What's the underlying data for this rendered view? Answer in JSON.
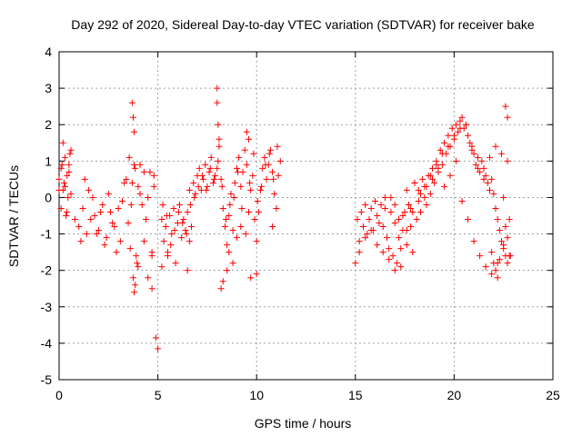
{
  "chart_data": {
    "type": "scatter",
    "title": "Day 292 of 2020, Sidereal Day-to-day VTEC variation (SDTVAR) for receiver bake",
    "xlabel": "GPS time / hours",
    "ylabel": "SDTVAR / TECUs",
    "xlim": [
      0,
      25
    ],
    "ylim": [
      -5,
      4
    ],
    "xticks": [
      "0",
      "5",
      "10",
      "15",
      "20",
      "25"
    ],
    "yticks": [
      "4",
      "3",
      "2",
      "1",
      "0",
      "-1",
      "-2",
      "-3",
      "-4",
      "-5"
    ],
    "grid": true,
    "marker": "plus",
    "color": "#ff0000",
    "series": [
      {
        "name": "SDTVAR",
        "x": [
          0.0,
          0.1,
          0.2,
          0.3,
          0.4,
          0.5,
          0.6,
          0.1,
          0.3,
          0.5,
          0.2,
          0.4,
          0.6,
          0.0,
          0.15,
          0.35,
          0.55,
          0.25,
          0.45,
          0.8,
          1.0,
          1.2,
          1.4,
          1.5,
          1.6,
          1.8,
          2.0,
          2.2,
          2.4,
          2.6,
          2.8,
          3.0,
          3.2,
          3.4,
          3.5,
          3.6,
          3.7,
          3.8,
          3.9,
          4.0,
          4.2,
          4.4,
          4.5,
          4.6,
          4.8,
          1.1,
          1.3,
          1.7,
          1.9,
          2.1,
          2.3,
          2.5,
          2.7,
          2.9,
          3.1,
          3.3,
          3.55,
          3.65,
          3.75,
          3.85,
          3.95,
          4.1,
          4.3,
          4.7,
          3.7,
          3.75,
          3.8,
          3.8,
          3.85,
          4.0,
          4.1,
          4.3,
          4.5,
          4.7,
          4.8,
          4.7,
          4.9,
          5.0,
          5.2,
          5.3,
          5.4,
          5.5,
          5.6,
          5.7,
          5.8,
          5.9,
          6.0,
          6.1,
          6.2,
          6.3,
          6.4,
          6.5,
          6.6,
          6.7,
          6.8,
          6.9,
          7.0,
          7.1,
          7.2,
          7.3,
          7.4,
          7.5,
          7.6,
          7.7,
          7.8,
          7.9,
          8.0,
          8.1,
          8.2,
          8.3,
          8.4,
          8.5,
          8.6,
          8.7,
          8.8,
          8.9,
          9.0,
          9.1,
          9.2,
          9.3,
          9.4,
          9.5,
          9.6,
          9.7,
          9.8,
          9.9,
          10.0,
          10.1,
          10.2,
          10.3,
          10.4,
          10.5,
          10.6,
          10.7,
          10.8,
          10.9,
          11.0,
          11.1,
          11.2,
          5.25,
          5.45,
          5.65,
          5.85,
          6.05,
          6.25,
          6.45,
          6.65,
          6.85,
          7.05,
          7.25,
          7.45,
          7.65,
          7.85,
          8.05,
          8.25,
          8.45,
          8.65,
          8.85,
          9.05,
          9.25,
          9.45,
          9.65,
          9.85,
          10.05,
          10.25,
          10.45,
          10.65,
          10.85,
          11.05,
          5.2,
          5.5,
          6.5,
          6.6,
          8.0,
          8.0,
          8.05,
          8.1,
          8.2,
          8.3,
          8.5,
          8.6,
          8.8,
          9.0,
          9.2,
          9.5,
          9.6,
          9.7,
          10.0,
          10.8,
          15.0,
          15.1,
          15.2,
          15.3,
          15.4,
          15.5,
          15.6,
          15.7,
          15.8,
          15.9,
          16.0,
          16.1,
          16.2,
          16.3,
          16.4,
          16.5,
          16.6,
          16.7,
          16.8,
          16.9,
          17.0,
          17.1,
          17.2,
          17.3,
          17.4,
          17.5,
          17.6,
          17.7,
          17.8,
          17.9,
          18.0,
          18.1,
          18.2,
          18.3,
          18.4,
          18.5,
          18.6,
          18.7,
          18.8,
          18.9,
          19.0,
          19.1,
          19.2,
          19.3,
          19.4,
          19.5,
          19.6,
          19.7,
          19.8,
          19.9,
          20.0,
          20.1,
          20.2,
          20.3,
          20.4,
          20.5,
          20.6,
          20.7,
          20.8,
          20.9,
          21.0,
          21.1,
          21.2,
          21.3,
          21.4,
          21.5,
          21.6,
          21.7,
          21.8,
          21.9,
          22.0,
          22.1,
          22.2,
          22.3,
          22.4,
          22.5,
          22.6,
          22.7,
          15.2,
          15.5,
          15.8,
          16.1,
          16.4,
          16.7,
          17.0,
          17.3,
          17.6,
          17.9,
          18.2,
          18.5,
          18.8,
          19.1,
          19.4,
          19.7,
          20.0,
          20.3,
          20.6,
          20.9,
          21.2,
          21.5,
          21.8,
          22.1,
          22.4,
          22.7,
          16.5,
          16.8,
          17.0,
          17.2,
          17.4,
          17.6,
          17.8,
          18.0,
          18.3,
          18.6,
          18.9,
          19.2,
          19.5,
          19.8,
          20.1,
          20.4,
          20.7,
          21.0,
          21.3,
          21.6,
          21.9,
          22.2,
          22.5,
          22.8,
          21.9,
          22.0,
          22.1,
          22.2,
          22.3,
          22.5,
          22.6,
          22.7,
          22.8,
          22.85,
          22.6,
          22.7
        ],
        "y": [
          0.5,
          0.8,
          0.2,
          1.1,
          0.6,
          0.9,
          1.3,
          -0.3,
          0.3,
          0.7,
          1.5,
          -0.4,
          0.1,
          0.2,
          0.9,
          -0.5,
          1.2,
          0.4,
          0.0,
          -0.6,
          -0.8,
          -0.3,
          -1.0,
          0.2,
          -0.6,
          -0.5,
          -0.9,
          -0.2,
          -1.1,
          -0.4,
          -0.8,
          -0.3,
          -0.1,
          0.5,
          -0.7,
          -1.4,
          0.4,
          0.9,
          -1.6,
          0.3,
          -0.2,
          -0.6,
          0.0,
          0.7,
          0.3,
          -1.2,
          0.5,
          0.0,
          -1.0,
          -0.4,
          -1.3,
          0.1,
          -0.7,
          -1.5,
          -1.2,
          0.4,
          1.1,
          -0.2,
          -2.2,
          0.8,
          -1.8,
          0.1,
          0.7,
          -1.6,
          2.6,
          2.2,
          1.8,
          -2.6,
          -2.4,
          -1.9,
          0.9,
          -1.2,
          -2.2,
          -1.5,
          0.6,
          -2.5,
          -3.85,
          -4.15,
          -0.6,
          -1.2,
          -0.8,
          -1.5,
          -0.5,
          -1.0,
          -0.3,
          -1.8,
          -0.7,
          -0.2,
          -1.1,
          -0.6,
          -0.9,
          -0.4,
          0.2,
          -0.8,
          0.4,
          0.1,
          0.6,
          0.8,
          0.2,
          0.5,
          0.9,
          0.3,
          0.7,
          1.1,
          0.4,
          0.6,
          0.8,
          1.4,
          0.5,
          -0.3,
          -0.8,
          -1.3,
          -0.5,
          0.1,
          -0.9,
          0.4,
          0.8,
          1.1,
          0.3,
          0.7,
          1.3,
          0.9,
          -0.4,
          0.2,
          0.6,
          -0.6,
          -1.2,
          -0.4,
          0.2,
          0.8,
          1.1,
          0.5,
          0.9,
          1.3,
          0.7,
          0.1,
          -0.3,
          0.6,
          1.0,
          -0.2,
          -0.5,
          -1.3,
          -0.9,
          -0.4,
          -0.7,
          -1.0,
          -0.2,
          0.0,
          0.3,
          0.6,
          0.2,
          0.8,
          0.5,
          1.0,
          0.3,
          -0.6,
          -0.2,
          0.0,
          0.7,
          -0.3,
          -1.0,
          0.4,
          1.2,
          -0.1,
          0.3,
          0.9,
          1.2,
          0.5,
          1.4,
          -1.9,
          -1.6,
          -2.0,
          -1.2,
          3.0,
          2.6,
          2.0,
          1.6,
          -2.5,
          -2.3,
          -2.0,
          -1.5,
          -1.8,
          -1.1,
          -0.8,
          1.8,
          1.6,
          -2.2,
          -2.1,
          -0.8,
          -1.8,
          -0.6,
          -1.2,
          -0.4,
          -0.8,
          -0.2,
          -1.0,
          -0.6,
          -0.3,
          -0.9,
          -0.1,
          -0.5,
          -0.7,
          -0.2,
          -0.8,
          0.0,
          -1.1,
          -1.4,
          -0.4,
          -1.6,
          -0.2,
          -1.8,
          -0.6,
          -1.9,
          -0.9,
          -0.4,
          -1.3,
          -0.2,
          -0.8,
          -1.5,
          0.4,
          -0.6,
          0.2,
          -0.4,
          0.5,
          0.0,
          0.3,
          0.6,
          0.1,
          0.8,
          0.4,
          1.0,
          0.7,
          1.3,
          0.9,
          1.5,
          1.2,
          1.7,
          1.4,
          1.9,
          1.6,
          2.0,
          1.8,
          2.1,
          2.2,
          1.9,
          2.0,
          1.7,
          1.5,
          1.3,
          1.2,
          0.9,
          1.1,
          0.7,
          1.0,
          0.8,
          0.6,
          0.4,
          0.2,
          0.5,
          0.1,
          -0.3,
          -0.6,
          -0.9,
          -1.2,
          -1.4,
          -1.6,
          -1.8,
          -1.5,
          -1.1,
          -0.9,
          -1.3,
          -1.5,
          -1.7,
          -2.0,
          -1.4,
          -0.9,
          -0.4,
          -0.1,
          0.3,
          0.6,
          0.9,
          1.2,
          1.4,
          1.7,
          1.9,
          2.0,
          1.4,
          0.8,
          0.5,
          1.1,
          1.4,
          1.2,
          1.0,
          -0.3,
          0.0,
          -0.7,
          -1.1,
          -0.5,
          0.2,
          -0.3,
          0.4,
          0.1,
          -0.2,
          0.5,
          0.8,
          0.3,
          0.6,
          1.0,
          -0.1,
          -0.6,
          -1.2,
          -1.6,
          -1.9,
          -2.1,
          -1.8,
          -1.3,
          -0.6,
          -1.5,
          -1.8,
          -2.0,
          -2.2,
          -1.7,
          0.0,
          -0.8,
          -1.1,
          -1.6,
          -1.6,
          2.5,
          2.2
        ]
      }
    ]
  }
}
